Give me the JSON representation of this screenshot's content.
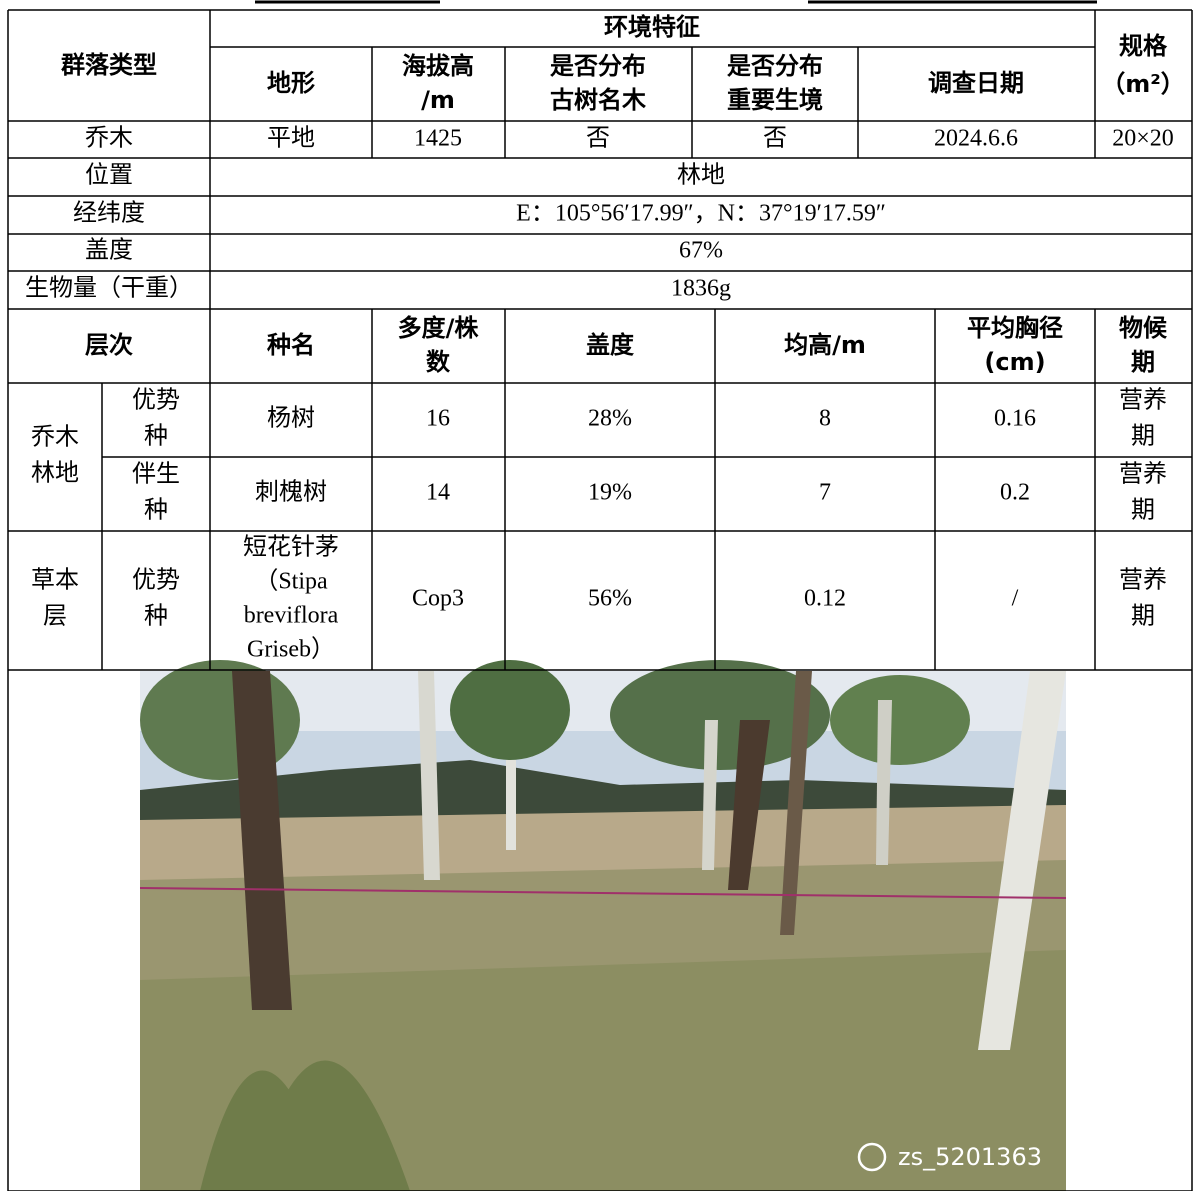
{
  "header": {
    "community_type": "群落类型",
    "environment": "环境特征",
    "spec": [
      "规格",
      "（m²）"
    ],
    "terrain": "地形",
    "altitude": [
      "海拔高",
      "/m"
    ],
    "old_trees": [
      "是否分布",
      "古树名木"
    ],
    "habitat": [
      "是否分布",
      "重要生境"
    ],
    "survey_date": "调查日期"
  },
  "basic_row": [
    "乔木",
    "平地",
    "1425",
    "否",
    "否",
    "2024.6.6",
    "20×20"
  ],
  "info_rows": [
    [
      "位置",
      "林地"
    ],
    [
      "经纬度",
      "E：105°56′17.99″，N：37°19′17.59″"
    ],
    [
      "盖度",
      "67%"
    ],
    [
      "生物量（干重）",
      "1836g"
    ]
  ],
  "species_header": {
    "layer": "层次",
    "name": "种名",
    "abundance": [
      "多度/株",
      "数"
    ],
    "coverage": "盖度",
    "height": "均高/m",
    "dbh": [
      "平均胸径",
      "(cm)"
    ],
    "phenology": [
      "物候",
      "期"
    ]
  },
  "layers": [
    {
      "label": [
        "乔木",
        "林地"
      ],
      "rows": [
        {
          "role": [
            "优势",
            "种"
          ],
          "name": [
            "杨树"
          ],
          "abundance": "16",
          "coverage": "28%",
          "height": "8",
          "dbh": "0.16",
          "phenology": [
            "营养",
            "期"
          ]
        },
        {
          "role": [
            "伴生",
            "种"
          ],
          "name": [
            "刺槐树"
          ],
          "abundance": "14",
          "coverage": "19%",
          "height": "7",
          "dbh": "0.2",
          "phenology": [
            "营养",
            "期"
          ]
        }
      ]
    },
    {
      "label": [
        "草本",
        "层"
      ],
      "rows": [
        {
          "role": [
            "优势",
            "种"
          ],
          "name": [
            "短花针茅",
            "（Stipa",
            "breviflora",
            "Griseb）"
          ],
          "abundance": "Cop3",
          "coverage": "56%",
          "height": "0.12",
          "dbh": "/",
          "phenology": [
            "营养",
            "期"
          ]
        }
      ]
    }
  ],
  "photo": {
    "watermark": "zs_5201363"
  }
}
